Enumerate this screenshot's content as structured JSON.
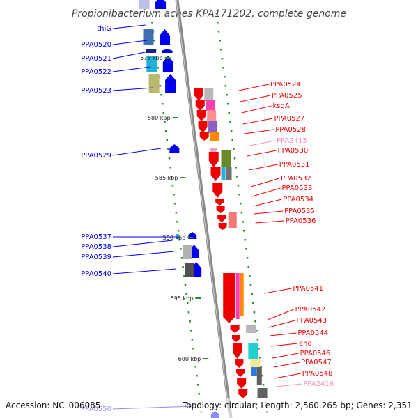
{
  "title": "Propionibacterium acnes KPA171202, complete genome",
  "footer": {
    "accession": "Accession: NC_006085",
    "topology": "Topology: circular; Length: 2,560,265 bp; Genes: 2,351"
  },
  "colors": {
    "backbone": "#8a8a8a",
    "tick": "#2a8a2a",
    "plus_strand": "#0000ee",
    "minus_strand": "#ee0000",
    "rna_label": "#f090c0"
  },
  "scale_ticks": [
    "575 kbp",
    "580 kbp",
    "585 kbp",
    "590 kbp",
    "595 kbp",
    "600 kbp"
  ],
  "left_labels": [
    "thiG",
    "PPA0520",
    "PPA0521",
    "PPA0522",
    "PPA0523",
    "PPA0529",
    "PPA0537",
    "PPA0538",
    "PPA0539",
    "PPA0540",
    "PPA0550"
  ],
  "right_labels": [
    "PPA0524",
    "PPA0525",
    "ksgA",
    "PPA0527",
    "PPA0528",
    "PPA2415",
    "PPA0530",
    "PPA0531",
    "PPA0532",
    "PPA0533",
    "PPA0534",
    "PPA0535",
    "PPA0536",
    "PPA0541",
    "PPA0542",
    "PPA0543",
    "PPA0544",
    "eno",
    "PPA0546",
    "PPA0547",
    "PPA0548",
    "PPA2416"
  ]
}
